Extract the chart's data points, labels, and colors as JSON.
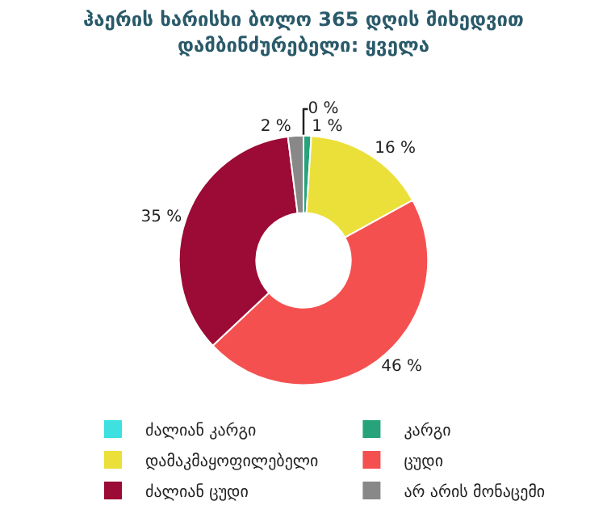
{
  "chart_data": {
    "type": "donut",
    "title": "ჰაერის ხარისხი ბოლო 365 დღის მიხედვით\nდამბინძურებელი: ყველა",
    "categories": [
      "ძალიან კარგი",
      "კარგი",
      "დამაკმაყოფილებელი",
      "ცუდი",
      "ძალიან ცუდი",
      "არ არის მონაცემი"
    ],
    "values": [
      0,
      1,
      16,
      46,
      35,
      2
    ],
    "colors": [
      "#3ee0e0",
      "#26a37a",
      "#ebe03a",
      "#f55050",
      "#9b0b35",
      "#888888"
    ],
    "value_labels": [
      "0 %",
      "1 %",
      "16 %",
      "46 %",
      "35 %",
      "2 %"
    ],
    "legend": "bottom"
  }
}
